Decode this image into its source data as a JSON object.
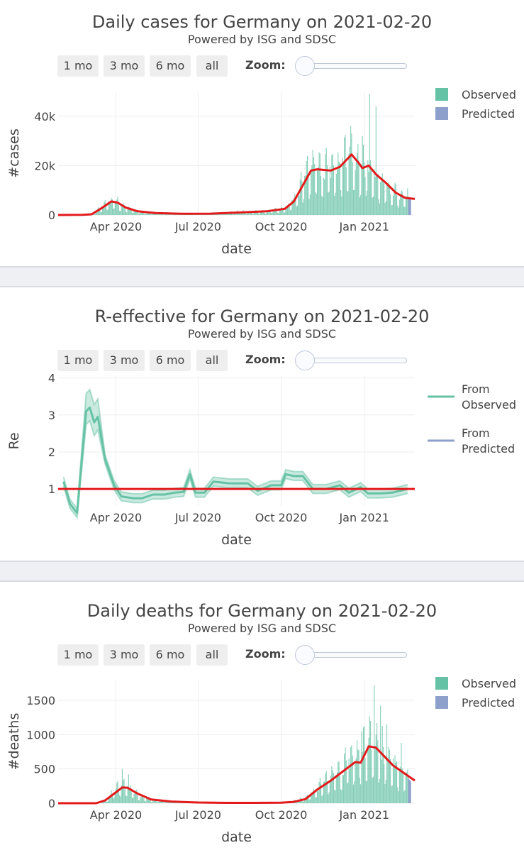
{
  "range_buttons": [
    "1 mo",
    "3 mo",
    "6 mo",
    "all"
  ],
  "zoom_label": "Zoom:",
  "colors": {
    "observed": "#66c2a5",
    "predicted": "#8da0cb",
    "trend": "#e31a1c",
    "reference": "#e31a1c"
  },
  "chart_data": [
    {
      "type": "bar",
      "title": "Daily cases for Germany on 2021-02-20",
      "subtitle": "Powered by ISG and SDSC",
      "xlabel": "date",
      "ylabel": "#cases",
      "x_ticks": [
        "Apr 2020",
        "Jul 2020",
        "Oct 2020",
        "Jan 2021"
      ],
      "y_ticks": [
        "0",
        "20k",
        "40k"
      ],
      "xlim": [
        "2020-01-28",
        "2021-02-26"
      ],
      "ylim": [
        0,
        50000
      ],
      "legend": {
        "position": "top-right",
        "entries": [
          "Observed",
          "Predicted"
        ]
      },
      "series": [
        {
          "name": "Observed",
          "kind": "bar",
          "weekly_means": [
            [
              "2020-02-24",
              20
            ],
            [
              "2020-03-02",
              150
            ],
            [
              "2020-03-09",
              900
            ],
            [
              "2020-03-16",
              2800
            ],
            [
              "2020-03-23",
              4500
            ],
            [
              "2020-03-30",
              5600
            ],
            [
              "2020-04-06",
              4300
            ],
            [
              "2020-04-13",
              3000
            ],
            [
              "2020-04-20",
              2000
            ],
            [
              "2020-04-27",
              1200
            ],
            [
              "2020-05-04",
              850
            ],
            [
              "2020-05-11",
              650
            ],
            [
              "2020-05-25",
              450
            ],
            [
              "2020-06-08",
              350
            ],
            [
              "2020-06-22",
              550
            ],
            [
              "2020-07-06",
              400
            ],
            [
              "2020-07-20",
              600
            ],
            [
              "2020-08-03",
              850
            ],
            [
              "2020-08-17",
              1300
            ],
            [
              "2020-08-31",
              1200
            ],
            [
              "2020-09-14",
              1500
            ],
            [
              "2020-09-28",
              2000
            ],
            [
              "2020-10-05",
              2700
            ],
            [
              "2020-10-12",
              4500
            ],
            [
              "2020-10-19",
              8000
            ],
            [
              "2020-10-26",
              13000
            ],
            [
              "2020-11-02",
              17000
            ],
            [
              "2020-11-09",
              18500
            ],
            [
              "2020-11-16",
              18000
            ],
            [
              "2020-11-23",
              17800
            ],
            [
              "2020-11-30",
              17500
            ],
            [
              "2020-12-07",
              19500
            ],
            [
              "2020-12-14",
              24000
            ],
            [
              "2020-12-21",
              22000
            ],
            [
              "2020-12-28",
              18000
            ],
            [
              "2021-01-04",
              19500
            ],
            [
              "2021-01-11",
              16500
            ],
            [
              "2021-01-18",
              13000
            ],
            [
              "2021-01-25",
              11000
            ],
            [
              "2021-02-01",
              9000
            ],
            [
              "2021-02-08",
              7500
            ],
            [
              "2021-02-15",
              6800
            ]
          ],
          "peaks": [
            [
              "2020-03-27",
              6900
            ],
            [
              "2020-11-06",
              23500
            ],
            [
              "2020-12-18",
              33000
            ],
            [
              "2020-12-30",
              32000
            ],
            [
              "2021-01-07",
              49000
            ],
            [
              "2021-01-14",
              44000
            ],
            [
              "2021-02-11",
              10000
            ]
          ]
        },
        {
          "name": "Predicted",
          "kind": "bar",
          "points": [
            [
              "2021-02-19",
              6800
            ],
            [
              "2021-02-20",
              6600
            ],
            [
              "2021-02-21",
              6500
            ]
          ]
        },
        {
          "name": "trend",
          "kind": "line",
          "points": [
            [
              "2020-01-28",
              0
            ],
            [
              "2020-02-24",
              50
            ],
            [
              "2020-03-05",
              300
            ],
            [
              "2020-03-15",
              2500
            ],
            [
              "2020-03-27",
              5500
            ],
            [
              "2020-04-03",
              5000
            ],
            [
              "2020-04-12",
              3000
            ],
            [
              "2020-04-25",
              1500
            ],
            [
              "2020-05-15",
              800
            ],
            [
              "2020-06-15",
              500
            ],
            [
              "2020-07-15",
              550
            ],
            [
              "2020-08-15",
              1000
            ],
            [
              "2020-09-15",
              1500
            ],
            [
              "2020-10-05",
              2500
            ],
            [
              "2020-10-15",
              5500
            ],
            [
              "2020-10-25",
              12000
            ],
            [
              "2020-11-03",
              18000
            ],
            [
              "2020-11-10",
              18500
            ],
            [
              "2020-11-25",
              18000
            ],
            [
              "2020-12-05",
              19500
            ],
            [
              "2020-12-18",
              24500
            ],
            [
              "2020-12-26",
              21000
            ],
            [
              "2020-12-30",
              19000
            ],
            [
              "2021-01-06",
              20000
            ],
            [
              "2021-01-14",
              16500
            ],
            [
              "2021-01-25",
              13000
            ],
            [
              "2021-02-05",
              9000
            ],
            [
              "2021-02-15",
              7000
            ],
            [
              "2021-02-26",
              6500
            ]
          ]
        }
      ]
    },
    {
      "type": "line",
      "title": "R-effective for Germany on 2021-02-20",
      "subtitle": "Powered by ISG and SDSC",
      "xlabel": "date",
      "ylabel": "Re",
      "x_ticks": [
        "Apr 2020",
        "Jul 2020",
        "Oct 2020",
        "Jan 2021"
      ],
      "y_ticks": [
        "1",
        "2",
        "3",
        "4"
      ],
      "xlim": [
        "2020-01-28",
        "2021-02-26"
      ],
      "ylim": [
        0.6,
        4.05
      ],
      "legend": {
        "position": "top-right",
        "entries": [
          "From Observed",
          "From Predicted"
        ]
      },
      "reference_line": 1,
      "series": [
        {
          "name": "From Observed",
          "band": 0.12,
          "points": [
            [
              "2020-02-03",
              1.2
            ],
            [
              "2020-02-10",
              0.6
            ],
            [
              "2020-02-18",
              0.35
            ],
            [
              "2020-02-28",
              3.1
            ],
            [
              "2020-03-03",
              3.2
            ],
            [
              "2020-03-08",
              2.8
            ],
            [
              "2020-03-12",
              2.95
            ],
            [
              "2020-03-20",
              1.8
            ],
            [
              "2020-03-30",
              1.1
            ],
            [
              "2020-04-07",
              0.8
            ],
            [
              "2020-04-20",
              0.75
            ],
            [
              "2020-04-30",
              0.75
            ],
            [
              "2020-05-12",
              0.85
            ],
            [
              "2020-05-25",
              0.85
            ],
            [
              "2020-06-05",
              0.9
            ],
            [
              "2020-06-15",
              0.92
            ],
            [
              "2020-06-22",
              1.4
            ],
            [
              "2020-06-28",
              0.9
            ],
            [
              "2020-07-08",
              0.9
            ],
            [
              "2020-07-18",
              1.2
            ],
            [
              "2020-08-05",
              1.15
            ],
            [
              "2020-08-25",
              1.15
            ],
            [
              "2020-09-05",
              0.95
            ],
            [
              "2020-09-20",
              1.1
            ],
            [
              "2020-10-01",
              1.1
            ],
            [
              "2020-10-06",
              1.4
            ],
            [
              "2020-10-15",
              1.35
            ],
            [
              "2020-10-25",
              1.35
            ],
            [
              "2020-11-05",
              1.0
            ],
            [
              "2020-11-20",
              1.0
            ],
            [
              "2020-12-05",
              1.1
            ],
            [
              "2020-12-15",
              0.9
            ],
            [
              "2020-12-28",
              1.05
            ],
            [
              "2021-01-05",
              0.88
            ],
            [
              "2021-01-20",
              0.88
            ],
            [
              "2021-02-01",
              0.9
            ],
            [
              "2021-02-10",
              0.95
            ],
            [
              "2021-02-18",
              1.0
            ]
          ]
        },
        {
          "name": "From Predicted",
          "points": []
        }
      ]
    },
    {
      "type": "bar",
      "title": "Daily deaths for Germany on 2021-02-20",
      "subtitle": "Powered by ISG and SDSC",
      "xlabel": "date",
      "ylabel": "#deaths",
      "x_ticks": [
        "Apr 2020",
        "Jul 2020",
        "Oct 2020",
        "Jan 2021"
      ],
      "y_ticks": [
        "0",
        "500",
        "1000",
        "1500"
      ],
      "xlim": [
        "2020-01-28",
        "2021-02-26"
      ],
      "ylim": [
        0,
        1800
      ],
      "legend": {
        "position": "top-right",
        "entries": [
          "Observed",
          "Predicted"
        ]
      },
      "series": [
        {
          "name": "Observed",
          "kind": "bar",
          "weekly_means": [
            [
              "2020-03-16",
              10
            ],
            [
              "2020-03-23",
              60
            ],
            [
              "2020-03-30",
              160
            ],
            [
              "2020-04-06",
              230
            ],
            [
              "2020-04-13",
              220
            ],
            [
              "2020-04-20",
              160
            ],
            [
              "2020-04-27",
              110
            ],
            [
              "2020-05-04",
              70
            ],
            [
              "2020-05-11",
              45
            ],
            [
              "2020-05-25",
              30
            ],
            [
              "2020-06-08",
              18
            ],
            [
              "2020-06-22",
              10
            ],
            [
              "2020-07-06",
              8
            ],
            [
              "2020-07-20",
              6
            ],
            [
              "2020-08-03",
              6
            ],
            [
              "2020-08-17",
              6
            ],
            [
              "2020-08-31",
              6
            ],
            [
              "2020-09-14",
              8
            ],
            [
              "2020-09-28",
              12
            ],
            [
              "2020-10-05",
              16
            ],
            [
              "2020-10-12",
              22
            ],
            [
              "2020-10-19",
              40
            ],
            [
              "2020-10-26",
              70
            ],
            [
              "2020-11-02",
              120
            ],
            [
              "2020-11-09",
              190
            ],
            [
              "2020-11-16",
              260
            ],
            [
              "2020-11-23",
              330
            ],
            [
              "2020-11-30",
              400
            ],
            [
              "2020-12-07",
              480
            ],
            [
              "2020-12-14",
              580
            ],
            [
              "2020-12-21",
              620
            ],
            [
              "2020-12-28",
              720
            ],
            [
              "2021-01-04",
              800
            ],
            [
              "2021-01-11",
              830
            ],
            [
              "2021-01-18",
              780
            ],
            [
              "2021-01-25",
              680
            ],
            [
              "2021-02-01",
              580
            ],
            [
              "2021-02-08",
              480
            ],
            [
              "2021-02-15",
              380
            ]
          ],
          "peaks": [
            [
              "2020-04-08",
              500
            ],
            [
              "2020-04-15",
              420
            ],
            [
              "2020-12-29",
              1050
            ],
            [
              "2021-01-08",
              1200
            ],
            [
              "2021-01-12",
              1720
            ],
            [
              "2021-01-19",
              1420
            ],
            [
              "2021-01-26",
              1150
            ],
            [
              "2021-02-11",
              880
            ]
          ]
        },
        {
          "name": "Predicted",
          "kind": "bar",
          "points": [
            [
              "2021-02-19",
              360
            ],
            [
              "2021-02-20",
              340
            ],
            [
              "2021-02-21",
              320
            ]
          ]
        },
        {
          "name": "trend",
          "kind": "line",
          "points": [
            [
              "2020-01-28",
              0
            ],
            [
              "2020-03-10",
              0
            ],
            [
              "2020-03-20",
              40
            ],
            [
              "2020-03-30",
              140
            ],
            [
              "2020-04-08",
              230
            ],
            [
              "2020-04-14",
              225
            ],
            [
              "2020-04-25",
              140
            ],
            [
              "2020-05-10",
              55
            ],
            [
              "2020-06-01",
              25
            ],
            [
              "2020-07-01",
              10
            ],
            [
              "2020-08-01",
              5
            ],
            [
              "2020-09-01",
              5
            ],
            [
              "2020-10-01",
              8
            ],
            [
              "2020-10-15",
              20
            ],
            [
              "2020-10-28",
              60
            ],
            [
              "2020-11-10",
              200
            ],
            [
              "2020-11-25",
              330
            ],
            [
              "2020-12-10",
              480
            ],
            [
              "2020-12-22",
              600
            ],
            [
              "2020-12-28",
              590
            ],
            [
              "2021-01-06",
              830
            ],
            [
              "2021-01-14",
              810
            ],
            [
              "2021-01-22",
              700
            ],
            [
              "2021-02-02",
              550
            ],
            [
              "2021-02-15",
              430
            ],
            [
              "2021-02-26",
              330
            ]
          ]
        }
      ]
    }
  ]
}
